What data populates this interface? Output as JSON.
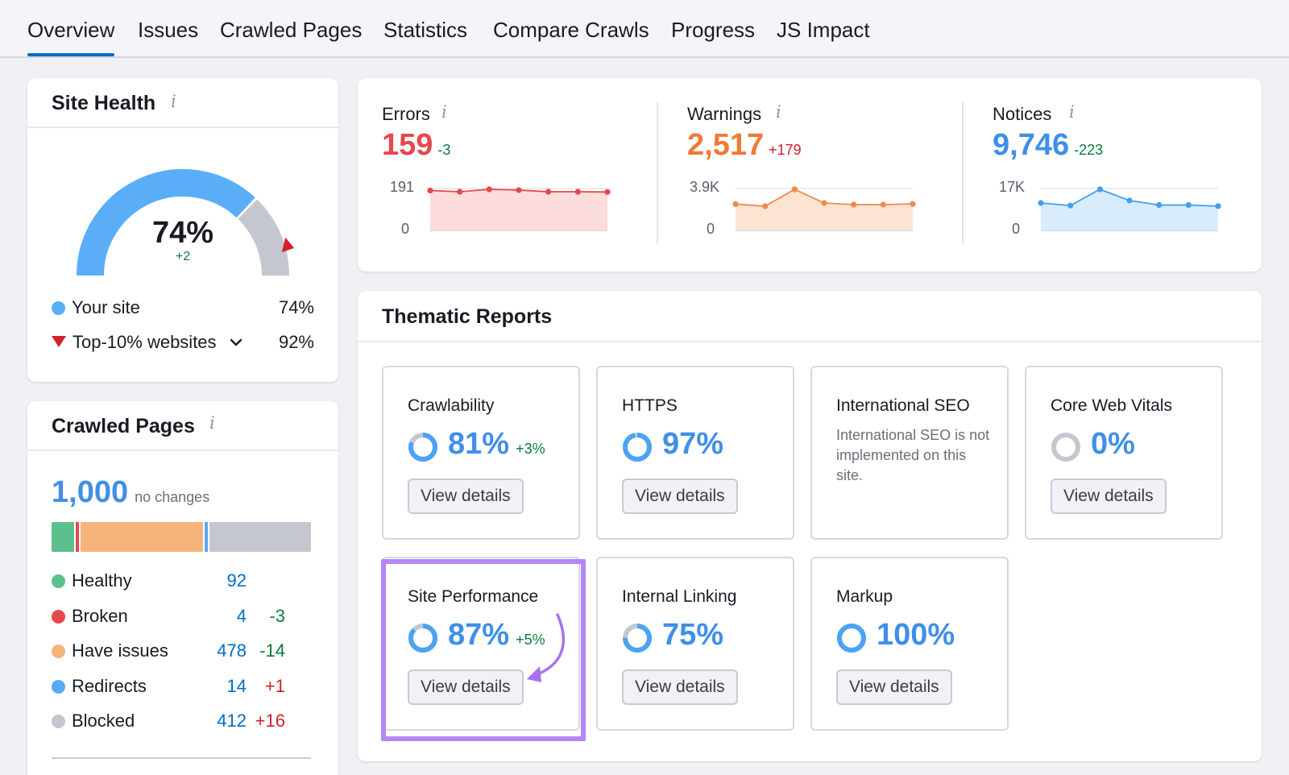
{
  "tabs": [
    "Overview",
    "Issues",
    "Crawled Pages",
    "Statistics",
    "Compare Crawls",
    "Progress",
    "JS Impact"
  ],
  "site_health": {
    "title": "Site Health",
    "score": "74%",
    "delta": "+2",
    "your_site_label": "Your site",
    "your_site_value": "74%",
    "top10_label": "Top-10% websites",
    "top10_value": "92%",
    "score_fraction": 0.74,
    "top10_fraction": 0.92,
    "colors": {
      "your_site": "#5aaef8",
      "rest": "#c4c7cf",
      "marker": "#d0202e"
    }
  },
  "issues_summary": {
    "errors": {
      "label": "Errors",
      "value": "159",
      "delta": "-3",
      "ymax": "191",
      "ymin": "0",
      "color": "#e5484d",
      "fill": "#fcdcdd",
      "points": [
        165,
        160,
        170,
        167,
        160,
        160,
        159
      ]
    },
    "warnings": {
      "label": "Warnings",
      "value": "2,517",
      "delta": "+179",
      "ymax": "3.9K",
      "ymin": "0",
      "color": "#f08a4b",
      "fill": "#fde4d2",
      "points": [
        2500,
        2300,
        3900,
        2600,
        2450,
        2450,
        2517
      ]
    },
    "notices": {
      "label": "Notices",
      "value": "9,746",
      "delta": "-223",
      "ymax": "17K",
      "ymin": "0",
      "color": "#3f9ff0",
      "fill": "#d9ecfc",
      "points": [
        11000,
        10000,
        16500,
        12000,
        10200,
        10200,
        9746
      ]
    }
  },
  "thematic": {
    "title": "Thematic Reports",
    "view_details": "View details",
    "cards": [
      {
        "title": "Crawlability",
        "pct": "81%",
        "delta": "+3%",
        "value": 0.81
      },
      {
        "title": "HTTPS",
        "pct": "97%",
        "delta": "",
        "value": 0.97
      },
      {
        "title": "International SEO",
        "text": "International SEO is not implemented on this site."
      },
      {
        "title": "Core Web Vitals",
        "pct": "0%",
        "delta": "",
        "value": 0
      },
      {
        "title": "Site Performance",
        "pct": "87%",
        "delta": "+5%",
        "value": 0.87
      },
      {
        "title": "Internal Linking",
        "pct": "75%",
        "delta": "",
        "value": 0.75
      },
      {
        "title": "Markup",
        "pct": "100%",
        "delta": "",
        "value": 1.0
      }
    ],
    "highlight_color": "#a97ef0"
  },
  "crawled_pages": {
    "title": "Crawled Pages",
    "total": "1,000",
    "change": "no changes",
    "rows": [
      {
        "label": "Healthy",
        "count": "92",
        "delta": "",
        "color": "#5cbf8e"
      },
      {
        "label": "Broken",
        "count": "4",
        "delta": "-3",
        "color": "#e5484d"
      },
      {
        "label": "Have issues",
        "count": "478",
        "delta": "-14",
        "color": "#f5b47a"
      },
      {
        "label": "Redirects",
        "count": "14",
        "delta": "+1",
        "color": "#58a9f5"
      },
      {
        "label": "Blocked",
        "count": "412",
        "delta": "+16",
        "color": "#c4c7cf"
      }
    ],
    "bar_values": [
      92,
      4,
      478,
      14,
      412
    ]
  }
}
